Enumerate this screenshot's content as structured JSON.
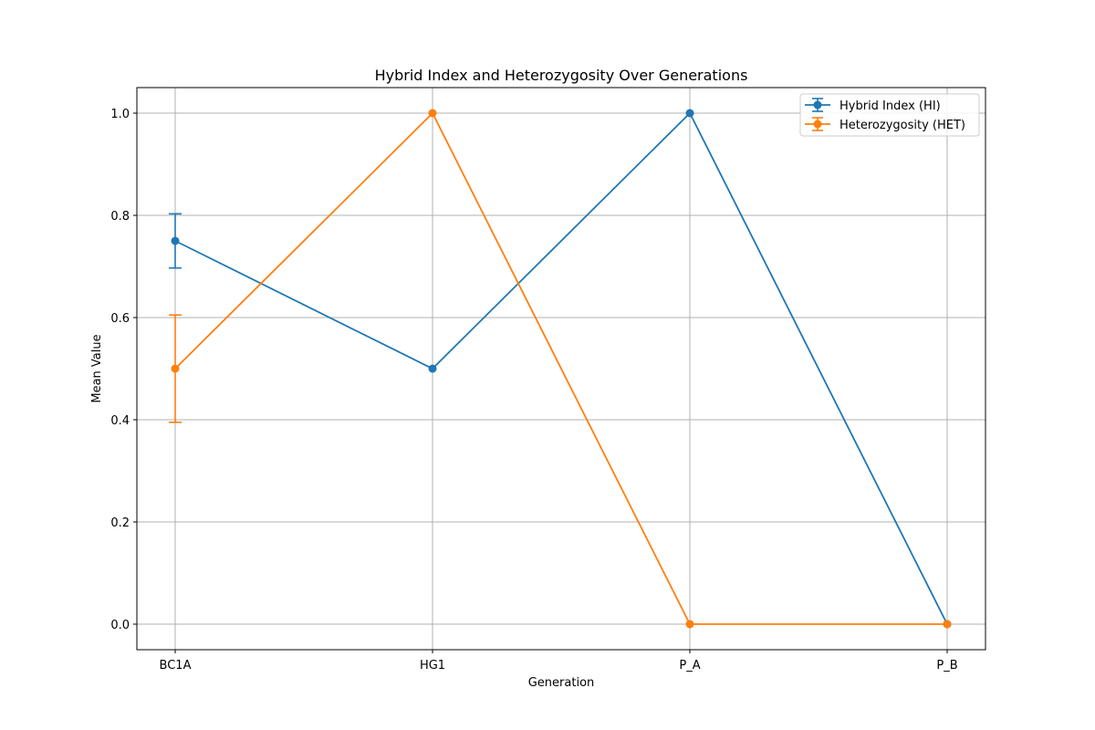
{
  "chart_data": {
    "type": "line",
    "title": "Hybrid Index and Heterozygosity Over Generations",
    "xlabel": "Generation",
    "ylabel": "Mean Value",
    "categories": [
      "BC1A",
      "HG1",
      "P_A",
      "P_B"
    ],
    "yticks": [
      "0.0",
      "0.2",
      "0.4",
      "0.6",
      "0.8",
      "1.0"
    ],
    "ylim": [
      -0.05,
      1.05
    ],
    "grid": true,
    "legend_position": "top-right",
    "series": [
      {
        "name": "Hybrid Index (HI)",
        "color": "#1f77b4",
        "values": [
          0.75,
          0.5,
          1.0,
          0.0
        ],
        "errors": [
          0.053,
          0,
          0,
          0
        ]
      },
      {
        "name": "Heterozygosity (HET)",
        "color": "#ff7f0e",
        "values": [
          0.5,
          1.0,
          0.0,
          0.0
        ],
        "errors": [
          0.105,
          0,
          0,
          0
        ]
      }
    ]
  }
}
